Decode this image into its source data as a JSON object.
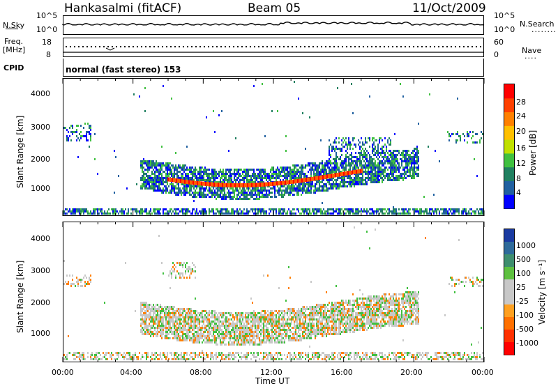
{
  "header": {
    "station": "Hankasalmi (fitACF)",
    "beam": "Beam 05",
    "date": "11/Oct/2009"
  },
  "noise_panel": {
    "left_label": "N.Sky",
    "left_ticks": [
      "10^5",
      "10^0"
    ],
    "right_ticks": [
      "10^5",
      "10^0"
    ],
    "right_label": "N.Search",
    "right_legend": "........"
  },
  "freq_panel": {
    "left_label_line1": "Freq.",
    "left_label_line2": "[MHz]",
    "left_ticks": [
      "18",
      "8"
    ],
    "right_ticks": [
      "60",
      "0"
    ],
    "right_label": "Nave",
    "right_legend": "...."
  },
  "cpid": {
    "label": "CPID",
    "text": "normal (fast stereo) 153"
  },
  "chart_data": [
    {
      "type": "heatmap",
      "name": "power",
      "ylabel": "Slant Range [km]",
      "yticks": [
        "4000",
        "3000",
        "2000",
        "1000"
      ],
      "ylim": [
        200,
        4600
      ],
      "xlim_hours": [
        0,
        24
      ],
      "colorbar_label": "Power [dB]",
      "colorbar_ticks": [
        "28",
        "24",
        "20",
        "16",
        "12",
        "8",
        "4"
      ],
      "colorbar_colors": [
        "#ff0000",
        "#ff4000",
        "#ff8000",
        "#ffc000",
        "#c0e000",
        "#40c040",
        "#208060",
        "#2060a0",
        "#0000ff"
      ]
    },
    {
      "type": "heatmap",
      "name": "velocity",
      "ylabel": "Slant Range [km]",
      "yticks": [
        "4000",
        "3000",
        "2000",
        "1000"
      ],
      "ylim": [
        200,
        4600
      ],
      "xlim_hours": [
        0,
        24
      ],
      "colorbar_label": "Velocity [m s⁻¹]",
      "colorbar_ticks": [
        "1000",
        "500",
        "100",
        "25",
        "-25",
        "-100",
        "-500",
        "-1000"
      ],
      "colorbar_colors": [
        "#1a3aa0",
        "#2e6a9a",
        "#3e8e6e",
        "#5ec040",
        "#c8c8c8",
        "#c8c8c8",
        "#ffa020",
        "#ff7000",
        "#ff3000",
        "#ff0000"
      ]
    }
  ],
  "xaxis": {
    "ticks": [
      "00:00",
      "04:00",
      "08:00",
      "12:00",
      "16:00",
      "20:00",
      "00:00"
    ],
    "label": "Time UT"
  },
  "colors": {
    "frame": "#000000",
    "echo_gray": "#c8c8c8"
  }
}
